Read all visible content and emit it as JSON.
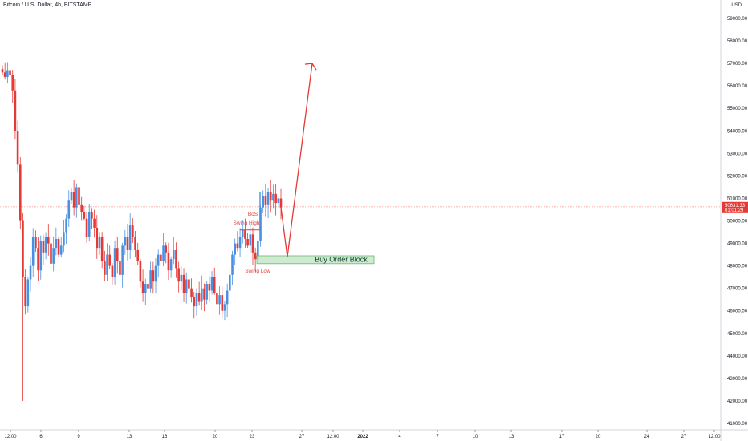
{
  "header": {
    "title": "Bitcoin / U.S. Dollar, 4h, BITSTAMP",
    "currency": "USD"
  },
  "colors": {
    "up": "#4a90e2",
    "down": "#e53935",
    "annotation": "#e53935",
    "block_fill": "#c8e6c9",
    "block_stroke": "#66bb6a",
    "price_line": "#f4a3a3"
  },
  "chart_data": {
    "type": "candlestick",
    "ylim": [
      40800,
      59800
    ],
    "y_ticks": [
      41000,
      42000,
      43000,
      44000,
      45000,
      46000,
      47000,
      48000,
      49000,
      50000,
      51000,
      52000,
      53000,
      54000,
      55000,
      56000,
      57000,
      58000,
      59000
    ],
    "y_tick_labels": [
      "41000.00",
      "42000.00",
      "43000.00",
      "44000.00",
      "45000.00",
      "46000.00",
      "47000.00",
      "48000.00",
      "49000.00",
      "50000.00",
      "51000.00",
      "52000.00",
      "53000.00",
      "54000.00",
      "55000.00",
      "56000.00",
      "57000.00",
      "58000.00",
      "59000.00"
    ],
    "x_ticks": [
      "12:00",
      "6",
      "9",
      "13",
      "16",
      "20",
      "23",
      "27",
      "12:00",
      "2022",
      "4",
      "7",
      "10",
      "13",
      "17",
      "20",
      "24",
      "27",
      "12:00"
    ],
    "last_price": {
      "value": 50631.33,
      "label": "50631.33",
      "countdown": "01:01:29"
    },
    "candles_close": [
      56600,
      56400,
      56700,
      56500,
      55800,
      54000,
      52500,
      50000,
      47500,
      46200,
      47400,
      48000,
      49300,
      48800,
      47800,
      49100,
      48600,
      49300,
      49000,
      48100,
      48800,
      49200,
      48500,
      48900,
      49500,
      50100,
      50900,
      51300,
      50600,
      51500,
      50700,
      50400,
      50100,
      49300,
      50400,
      50100,
      49700,
      48800,
      49300,
      48200,
      47600,
      48500,
      48000,
      47500,
      48800,
      48200,
      47600,
      48900,
      49300,
      48700,
      49800,
      49300,
      48700,
      48200,
      47300,
      46800,
      47200,
      47000,
      47800,
      47300,
      48000,
      48500,
      48200,
      48900,
      48600,
      47800,
      48300,
      48700,
      47900,
      47300,
      47600,
      46800,
      47400,
      47000,
      46600,
      46200,
      46800,
      46400,
      47000,
      46500,
      47200,
      46900,
      47500,
      46800,
      46300,
      46700,
      46000,
      46300,
      46900,
      47600,
      48500,
      49000,
      48800,
      49300,
      49600,
      49200,
      48900,
      49400,
      48600,
      48300,
      49100,
      50600,
      51100,
      50700,
      51300,
      50900,
      51200,
      50800,
      51000,
      50600
    ],
    "swing_high": 49600,
    "swing_low": 48100,
    "buy_order_block": [
      48100,
      48450
    ],
    "projection": [
      {
        "price": 50600
      },
      {
        "price": 48400
      },
      {
        "price": 57000
      }
    ],
    "annotations": {
      "bos": "BoS",
      "swing_high": "Swing High",
      "swing_low": "Swing Low",
      "block": "Buy Order Block"
    }
  }
}
